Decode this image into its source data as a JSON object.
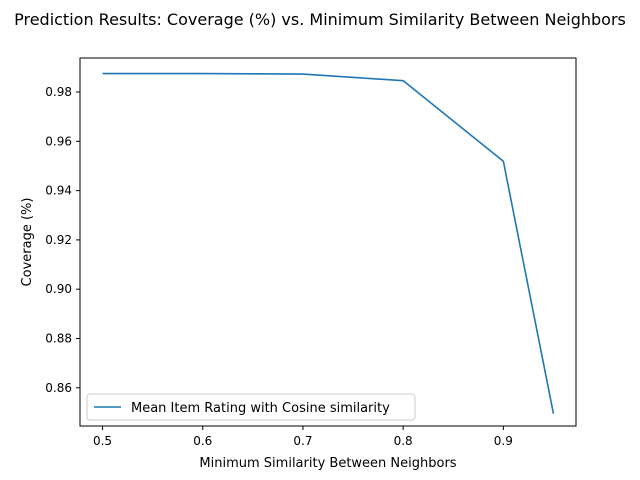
{
  "chart_data": {
    "type": "line",
    "title": "Prediction Results: Coverage (%) vs. Minimum Similarity Between Neighbors",
    "xlabel": "Minimum Similarity Between Neighbors",
    "ylabel": "Coverage (%)",
    "xlim": [
      0.4775,
      0.9725
    ],
    "ylim": [
      0.8445,
      0.9938
    ],
    "xticks": [
      0.5,
      0.6,
      0.7,
      0.8,
      0.9
    ],
    "xtick_labels": [
      "0.5",
      "0.6",
      "0.7",
      "0.8",
      "0.9"
    ],
    "yticks": [
      0.86,
      0.88,
      0.9,
      0.92,
      0.94,
      0.96,
      0.98
    ],
    "ytick_labels": [
      "0.86",
      "0.88",
      "0.90",
      "0.92",
      "0.94",
      "0.96",
      "0.98"
    ],
    "grid": false,
    "legend_position": "lower-left",
    "series": [
      {
        "name": "Mean Item Rating with Cosine similarity",
        "color": "#1f77b4",
        "x": [
          0.5,
          0.6,
          0.7,
          0.8,
          0.9,
          0.95
        ],
        "values": [
          0.9875,
          0.9875,
          0.9873,
          0.9846,
          0.9519,
          0.8495
        ]
      }
    ]
  }
}
